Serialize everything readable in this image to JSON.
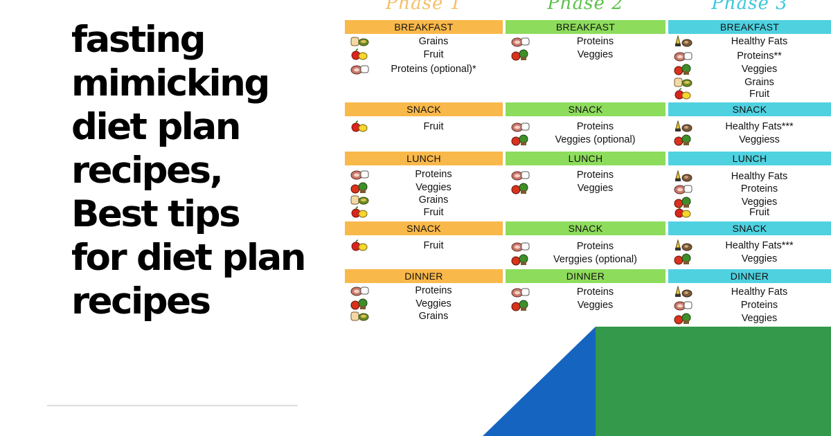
{
  "headline": {
    "lines": [
      "fasting",
      "mimicking",
      "diet plan",
      "recipes,",
      "Best tips",
      "for diet plan",
      "recipes"
    ]
  },
  "colors": {
    "phase1": "#f9b84a",
    "phase2": "#8ddc5c",
    "phase3": "#4fd1e0",
    "phase1_title": "#f4c06a",
    "phase2_title": "#5cc24a",
    "phase3_title": "#3cc7dd",
    "blue_shape": "#1565c0",
    "green_shape": "#34994a"
  },
  "phases": [
    {
      "title": "Phase 1",
      "meals": [
        {
          "name": "BREAKFAST",
          "items": [
            {
              "icon": "grains-icon",
              "label": "Grains"
            },
            {
              "icon": "fruit-icon",
              "label": "Fruit"
            },
            {
              "icon": "proteins-icon",
              "label": "Proteins (optional)*"
            }
          ]
        },
        {
          "name": "SNACK",
          "items": [
            {
              "icon": "fruit-icon",
              "label": "Fruit"
            }
          ]
        },
        {
          "name": "LUNCH",
          "items": [
            {
              "icon": "proteins-icon",
              "label": "Proteins"
            },
            {
              "icon": "veggies-icon",
              "label": "Veggies"
            },
            {
              "icon": "grains-icon",
              "label": "Grains"
            },
            {
              "icon": "fruit-icon",
              "label": "Fruit"
            }
          ]
        },
        {
          "name": "SNACK",
          "items": [
            {
              "icon": "fruit-icon",
              "label": "Fruit"
            }
          ]
        },
        {
          "name": "DINNER",
          "items": [
            {
              "icon": "proteins-icon",
              "label": "Proteins"
            },
            {
              "icon": "veggies-icon",
              "label": "Veggies"
            },
            {
              "icon": "grains-icon",
              "label": "Grains"
            }
          ]
        }
      ]
    },
    {
      "title": "Phase 2",
      "meals": [
        {
          "name": "BREAKFAST",
          "items": [
            {
              "icon": "proteins-icon",
              "label": "Proteins"
            },
            {
              "icon": "veggies-icon",
              "label": "Veggies"
            }
          ]
        },
        {
          "name": "SNACK",
          "items": [
            {
              "icon": "proteins-icon",
              "label": "Proteins"
            },
            {
              "icon": "veggies-icon",
              "label": "Veggies (optional)"
            }
          ]
        },
        {
          "name": "LUNCH",
          "items": [
            {
              "icon": "proteins-icon",
              "label": "Proteins"
            },
            {
              "icon": "veggies-icon",
              "label": "Veggies"
            }
          ]
        },
        {
          "name": "SNACK",
          "items": [
            {
              "icon": "proteins-icon",
              "label": "Proteins"
            },
            {
              "icon": "veggies-icon",
              "label": "Verggies (optional)"
            }
          ]
        },
        {
          "name": "DINNER",
          "items": [
            {
              "icon": "proteins-icon",
              "label": "Proteins"
            },
            {
              "icon": "veggies-icon",
              "label": "Veggies"
            }
          ]
        }
      ]
    },
    {
      "title": "Phase 3",
      "meals": [
        {
          "name": "BREAKFAST",
          "items": [
            {
              "icon": "healthy-fats-icon",
              "label": "Healthy Fats"
            },
            {
              "icon": "proteins-icon",
              "label": "Proteins**"
            },
            {
              "icon": "veggies-icon",
              "label": "Veggies"
            },
            {
              "icon": "grains-icon",
              "label": "Grains"
            },
            {
              "icon": "fruit-icon",
              "label": "Fruit"
            }
          ]
        },
        {
          "name": "SNACK",
          "items": [
            {
              "icon": "healthy-fats-icon",
              "label": "Healthy Fats***"
            },
            {
              "icon": "veggies-icon",
              "label": "Veggiess"
            }
          ]
        },
        {
          "name": "LUNCH",
          "items": [
            {
              "icon": "healthy-fats-icon",
              "label": "Healthy Fats"
            },
            {
              "icon": "proteins-icon",
              "label": "Proteins"
            },
            {
              "icon": "veggies-icon",
              "label": "Veggies"
            },
            {
              "icon": "fruit-icon",
              "label": "Fruit"
            }
          ]
        },
        {
          "name": "SNACK",
          "items": [
            {
              "icon": "healthy-fats-icon",
              "label": "Healthy Fats***"
            },
            {
              "icon": "veggies-icon",
              "label": "Veggies"
            }
          ]
        },
        {
          "name": "DINNER",
          "items": [
            {
              "icon": "healthy-fats-icon",
              "label": "Healthy Fats"
            },
            {
              "icon": "proteins-icon",
              "label": "Proteins"
            },
            {
              "icon": "veggies-icon",
              "label": "Veggies"
            }
          ]
        }
      ]
    }
  ]
}
